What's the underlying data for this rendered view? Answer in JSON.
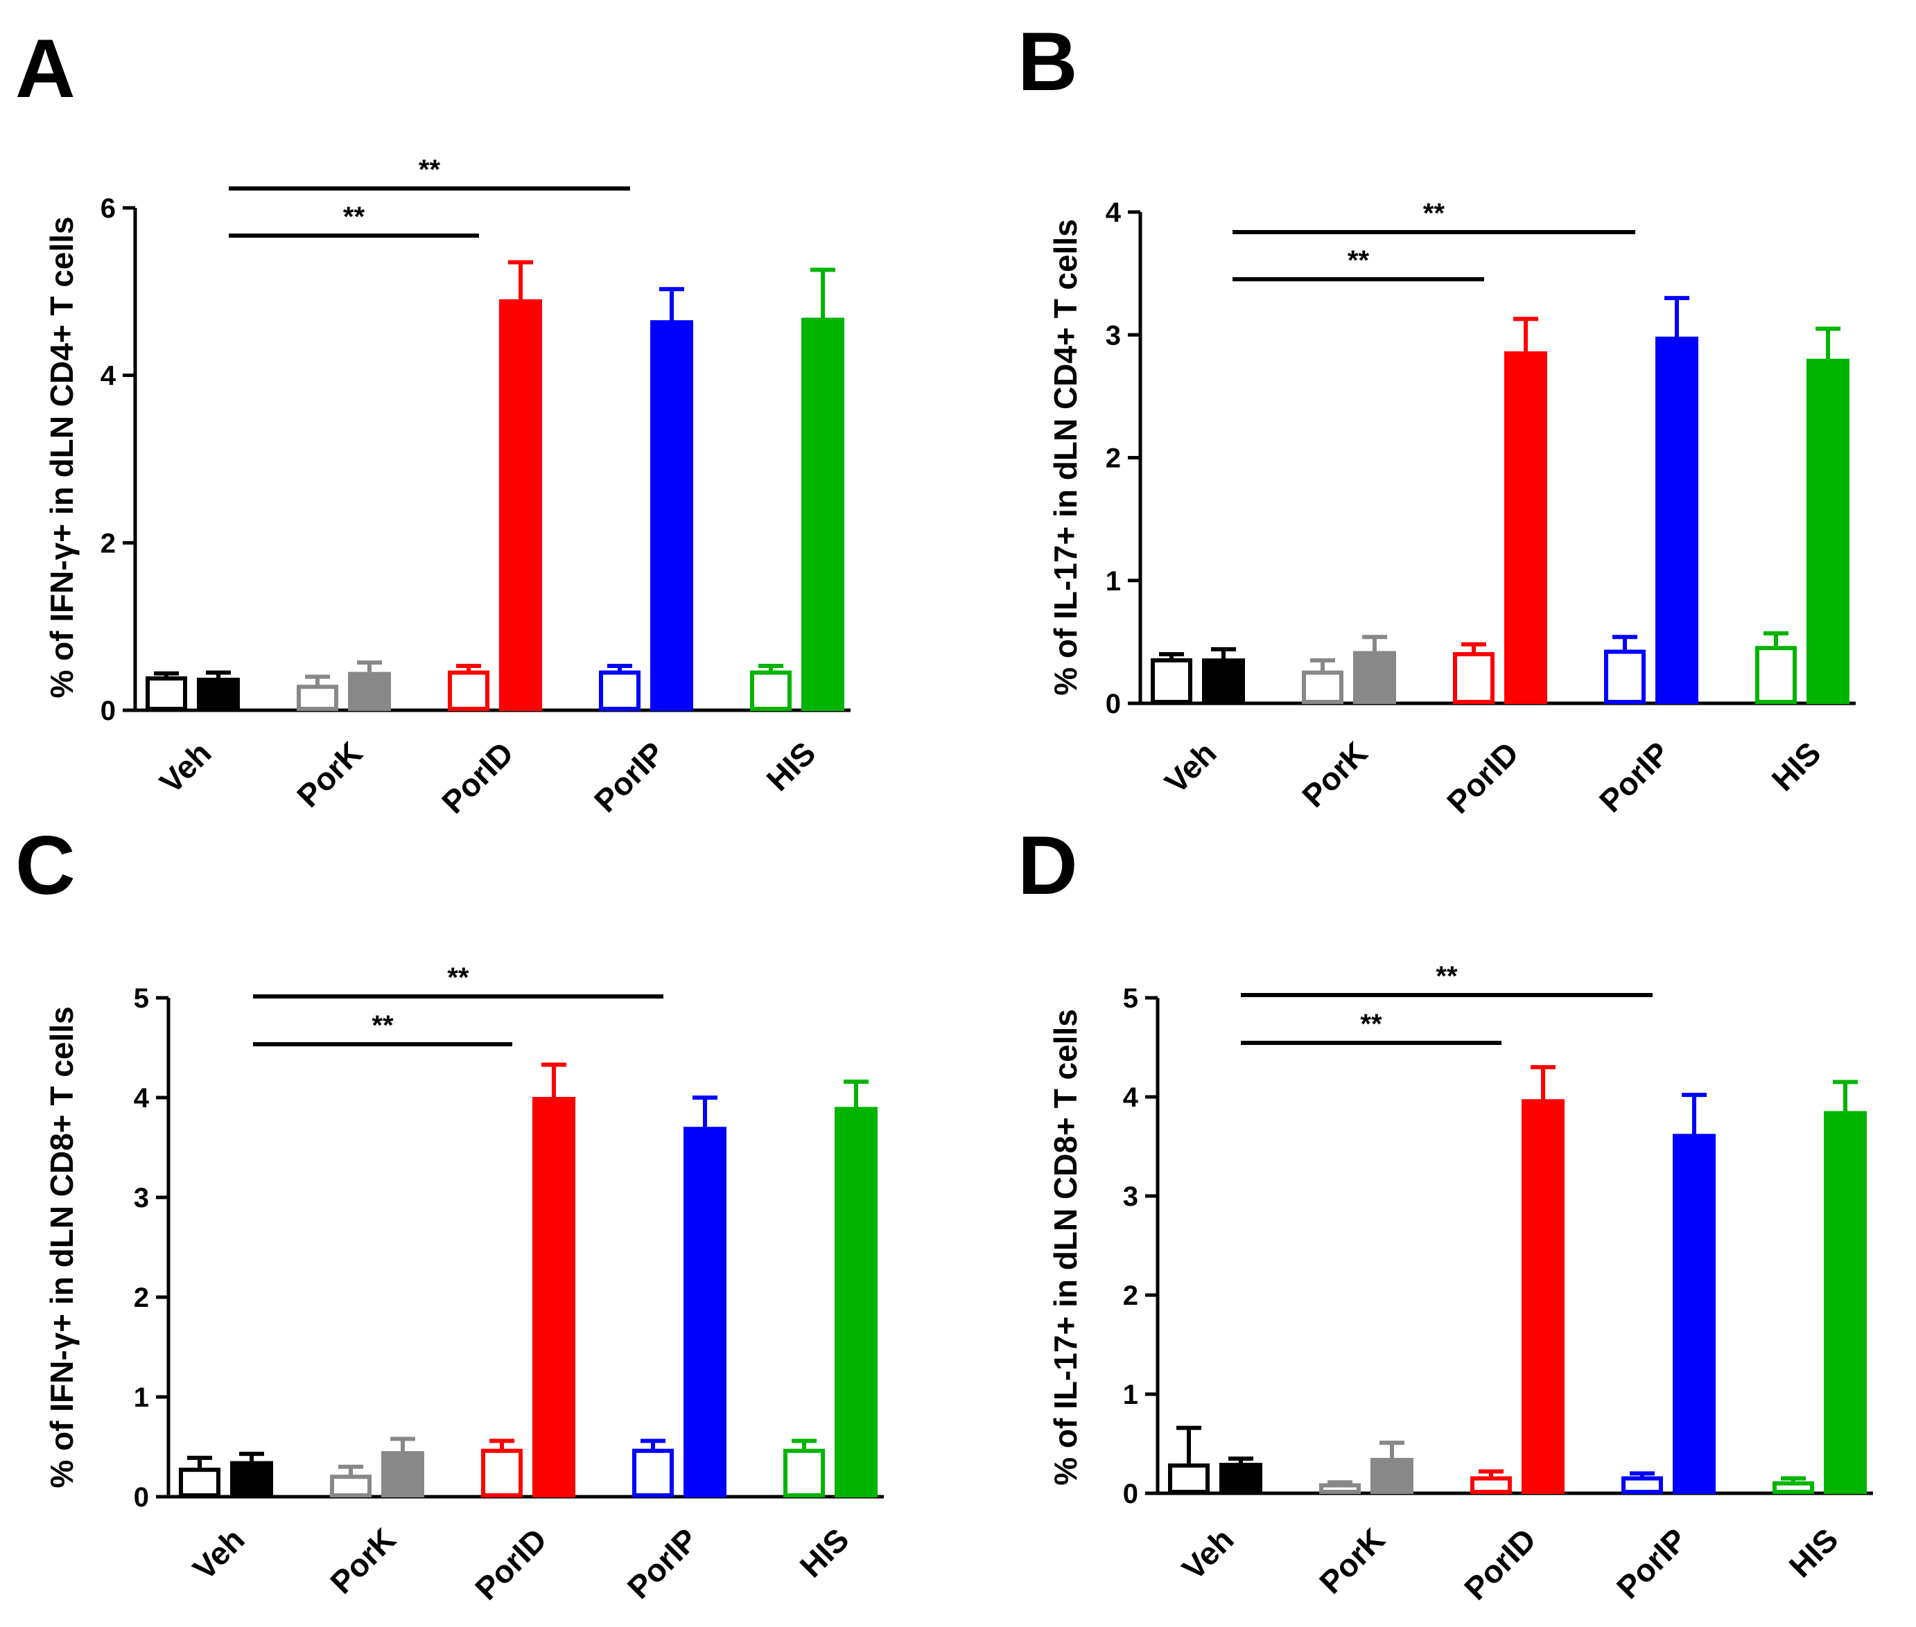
{
  "chart_data": [
    {
      "panel": "A",
      "type": "bar",
      "ylabel": "% of IFN-γ+ in dLN CD4+ T cells",
      "ylim": [
        0,
        6
      ],
      "yticks": [
        "0",
        "2",
        "4",
        "6"
      ],
      "categories": [
        "Veh",
        "PorK",
        "PorID",
        "PorIP",
        "HIS"
      ],
      "colors": [
        "#000000",
        "#888888",
        "#ff0000",
        "#0000ff",
        "#00b400"
      ],
      "series": [
        {
          "name": "open",
          "values": [
            0.38,
            0.28,
            0.45,
            0.45,
            0.45
          ],
          "errors": [
            0.06,
            0.12,
            0.08,
            0.08,
            0.08
          ]
        },
        {
          "name": "filled",
          "values": [
            0.38,
            0.45,
            4.9,
            4.65,
            4.68
          ],
          "errors": [
            0.07,
            0.12,
            0.45,
            0.38,
            0.58
          ]
        }
      ],
      "significance": [
        {
          "label": "**",
          "from": 0,
          "to": 2
        },
        {
          "label": "**",
          "from": 0,
          "to": 3
        }
      ]
    },
    {
      "panel": "B",
      "type": "bar",
      "ylabel": "% of IL-17+ in dLN CD4+ T cells",
      "ylim": [
        0,
        4
      ],
      "yticks": [
        "0",
        "1",
        "2",
        "3",
        "4"
      ],
      "categories": [
        "Veh",
        "PorK",
        "PorID",
        "PorIP",
        "HIS"
      ],
      "colors": [
        "#000000",
        "#888888",
        "#ff0000",
        "#0000ff",
        "#00b400"
      ],
      "series": [
        {
          "name": "open",
          "values": [
            0.35,
            0.25,
            0.4,
            0.42,
            0.45
          ],
          "errors": [
            0.05,
            0.1,
            0.08,
            0.12,
            0.12
          ]
        },
        {
          "name": "filled",
          "values": [
            0.36,
            0.42,
            2.86,
            2.98,
            2.8
          ],
          "errors": [
            0.08,
            0.12,
            0.27,
            0.32,
            0.25
          ]
        }
      ],
      "significance": [
        {
          "label": "**",
          "from": 0,
          "to": 2
        },
        {
          "label": "**",
          "from": 0,
          "to": 3
        }
      ]
    },
    {
      "panel": "C",
      "type": "bar",
      "ylabel": "% of IFN-γ+ in dLN CD8+ T cells",
      "ylim": [
        0,
        5
      ],
      "yticks": [
        "0",
        "1",
        "2",
        "3",
        "4",
        "5"
      ],
      "categories": [
        "Veh",
        "PorK",
        "PorID",
        "PorIP",
        "HIS"
      ],
      "colors": [
        "#000000",
        "#888888",
        "#ff0000",
        "#0000ff",
        "#00b400"
      ],
      "series": [
        {
          "name": "open",
          "values": [
            0.27,
            0.2,
            0.46,
            0.46,
            0.46
          ],
          "errors": [
            0.12,
            0.1,
            0.1,
            0.1,
            0.1
          ]
        },
        {
          "name": "filled",
          "values": [
            0.35,
            0.45,
            4.0,
            3.7,
            3.9
          ],
          "errors": [
            0.08,
            0.13,
            0.33,
            0.3,
            0.26
          ]
        }
      ],
      "significance": [
        {
          "label": "**",
          "from": 0,
          "to": 2
        },
        {
          "label": "**",
          "from": 0,
          "to": 3
        }
      ]
    },
    {
      "panel": "D",
      "type": "bar",
      "ylabel": "% of IL-17+ in dLN CD8+ T cells",
      "ylim": [
        0,
        5
      ],
      "yticks": [
        "0",
        "1",
        "2",
        "3",
        "4",
        "5"
      ],
      "categories": [
        "Veh",
        "PorK",
        "PorID",
        "PorIP",
        "HIS"
      ],
      "colors": [
        "#000000",
        "#888888",
        "#ff0000",
        "#0000ff",
        "#00b400"
      ],
      "series": [
        {
          "name": "open",
          "values": [
            0.28,
            0.08,
            0.15,
            0.15,
            0.1
          ],
          "errors": [
            0.38,
            0.03,
            0.07,
            0.05,
            0.05
          ]
        },
        {
          "name": "filled",
          "values": [
            0.3,
            0.35,
            3.97,
            3.62,
            3.85
          ],
          "errors": [
            0.05,
            0.16,
            0.33,
            0.4,
            0.3
          ]
        }
      ],
      "significance": [
        {
          "label": "**",
          "from": 0,
          "to": 2
        },
        {
          "label": "**",
          "from": 0,
          "to": 3
        }
      ]
    }
  ]
}
